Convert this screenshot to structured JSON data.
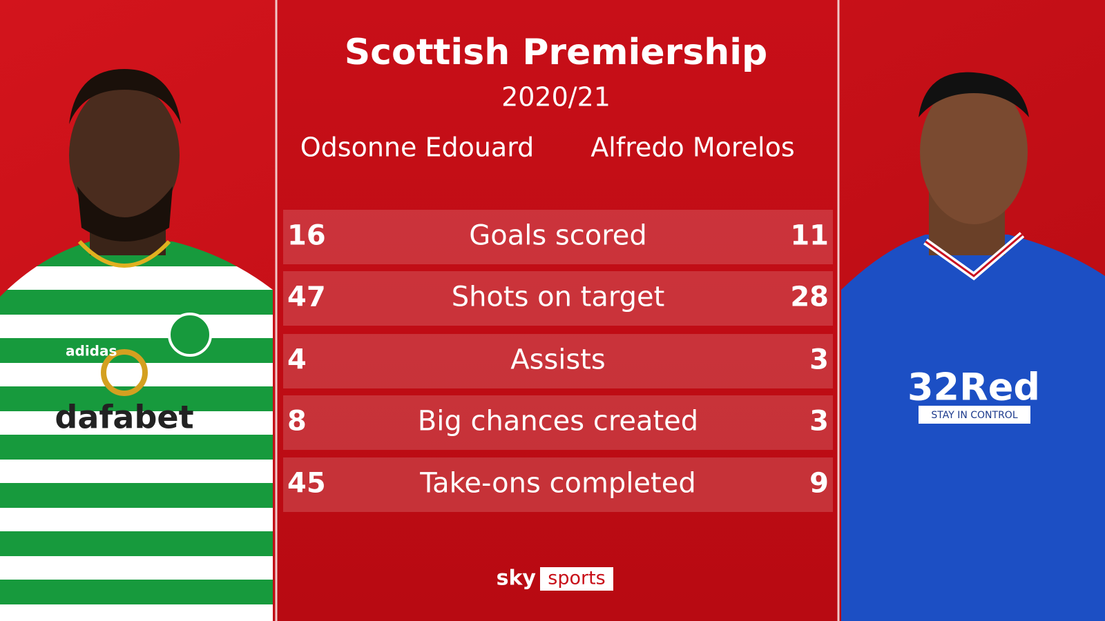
{
  "header": {
    "title": "Scottish Premiership",
    "season": "2020/21"
  },
  "players": [
    {
      "name": "Odsonne Edouard"
    },
    {
      "name": "Alfredo Morelos"
    }
  ],
  "table": {
    "rows": [
      {
        "left": 16,
        "stat": "Goals scored",
        "right": 11
      },
      {
        "left": 47,
        "stat": "Shots on target",
        "right": 28
      },
      {
        "left": 4,
        "stat": "Assists",
        "right": 3
      },
      {
        "left": 8,
        "stat": "Big chances created",
        "right": 3
      },
      {
        "left": 45,
        "stat": "Take-ons completed",
        "right": 9
      }
    ]
  },
  "photos": {
    "left_shirt": {
      "kit": "adidas",
      "sponsor": "dafabet"
    },
    "right_shirt": {
      "sponsor": "32Red",
      "tagline": "STAY IN CONTROL"
    }
  },
  "logo": {
    "brand": "sky",
    "channel": "sports"
  }
}
